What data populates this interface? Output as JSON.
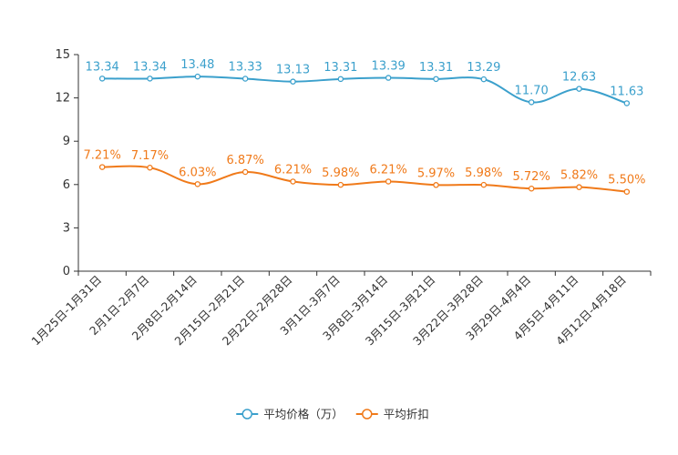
{
  "chart_data": {
    "type": "line",
    "title": "",
    "xlabel": "",
    "ylabel": "",
    "ylim": [
      0,
      15
    ],
    "yticks": [
      0,
      3,
      6,
      9,
      12,
      15
    ],
    "grid": false,
    "legend_position": "bottom-center",
    "categories": [
      "1月25日-1月31日",
      "2月1日-2月7日",
      "2月8日-2月14日",
      "2月15日-2月21日",
      "2月22日-2月28日",
      "3月1日-3月7日",
      "3月8日-3月14日",
      "3月15日-3月21日",
      "3月22日-3月28日",
      "3月29日-4月4日",
      "4月5日-4月11日",
      "4月12日-4月18日"
    ],
    "series": [
      {
        "name": "平均价格（万）",
        "color": "#3ba0cc",
        "values": [
          13.34,
          13.34,
          13.48,
          13.33,
          13.13,
          13.31,
          13.39,
          13.31,
          13.29,
          11.7,
          12.63,
          11.63
        ],
        "labels": [
          "13.34",
          "13.34",
          "13.48",
          "13.33",
          "13.13",
          "13.31",
          "13.39",
          "13.31",
          "13.29",
          "11.70",
          "12.63",
          "11.63"
        ]
      },
      {
        "name": "平均折扣",
        "color": "#f07a1a",
        "values": [
          7.21,
          7.17,
          6.03,
          6.87,
          6.21,
          5.98,
          6.21,
          5.97,
          5.98,
          5.72,
          5.82,
          5.5
        ],
        "labels": [
          "7.21%",
          "7.17%",
          "6.03%",
          "6.87%",
          "6.21%",
          "5.98%",
          "6.21%",
          "5.97%",
          "5.98%",
          "5.72%",
          "5.82%",
          "5.50%"
        ]
      }
    ]
  }
}
